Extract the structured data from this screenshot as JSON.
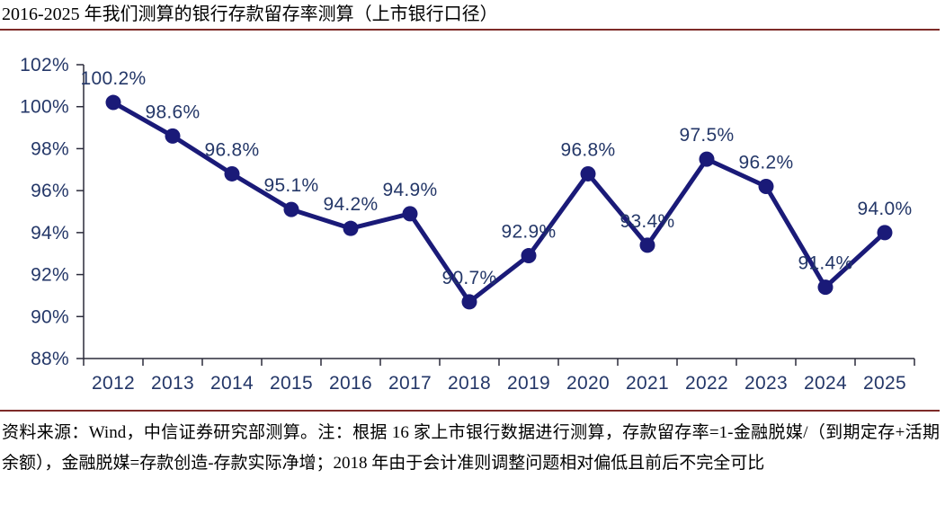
{
  "page": {
    "title": "2016-2025 年我们测算的银行存款留存率测算（上市银行口径）",
    "source_note": "资料来源：Wind，中信证券研究部测算。注：根据 16 家上市银行数据进行测算，存款留存率=1-金融脱媒/（到期定存+活期余额），金融脱媒=存款创造-存款实际净增；2018 年由于会计准则调整问题相对偏低且前后不完全可比"
  },
  "colors": {
    "accent_rule": "#7E2B28",
    "line": "#1A1A78",
    "marker": "#1A1A78",
    "chart_text": "#243768",
    "axis_line": "#2B2B3A",
    "title_text": "#000000",
    "note_text": "#000000",
    "background": "#FFFFFF"
  },
  "chart_data": {
    "type": "line",
    "title": "2016-2025 年我们测算的银行存款留存率测算（上市银行口径）",
    "categories": [
      "2012",
      "2013",
      "2014",
      "2015",
      "2016",
      "2017",
      "2018",
      "2019",
      "2020",
      "2021",
      "2022",
      "2023",
      "2024",
      "2025"
    ],
    "values": [
      100.2,
      98.6,
      96.8,
      95.1,
      94.2,
      94.9,
      90.7,
      92.9,
      96.8,
      93.4,
      97.5,
      96.2,
      91.4,
      94.0
    ],
    "point_labels": [
      "100.2%",
      "98.6%",
      "96.8%",
      "95.1%",
      "94.2%",
      "94.9%",
      "90.7%",
      "92.9%",
      "96.8%",
      "93.4%",
      "97.5%",
      "96.2%",
      "91.4%",
      "94.0%"
    ],
    "xlabel": "",
    "ylabel": "",
    "ylim": [
      88,
      102
    ],
    "ytick_step": 2,
    "ytick_labels": [
      "88%",
      "90%",
      "92%",
      "94%",
      "96%",
      "98%",
      "100%",
      "102%"
    ],
    "grid": false,
    "legend": false,
    "marker": "circle",
    "data_labels_visible": true
  }
}
